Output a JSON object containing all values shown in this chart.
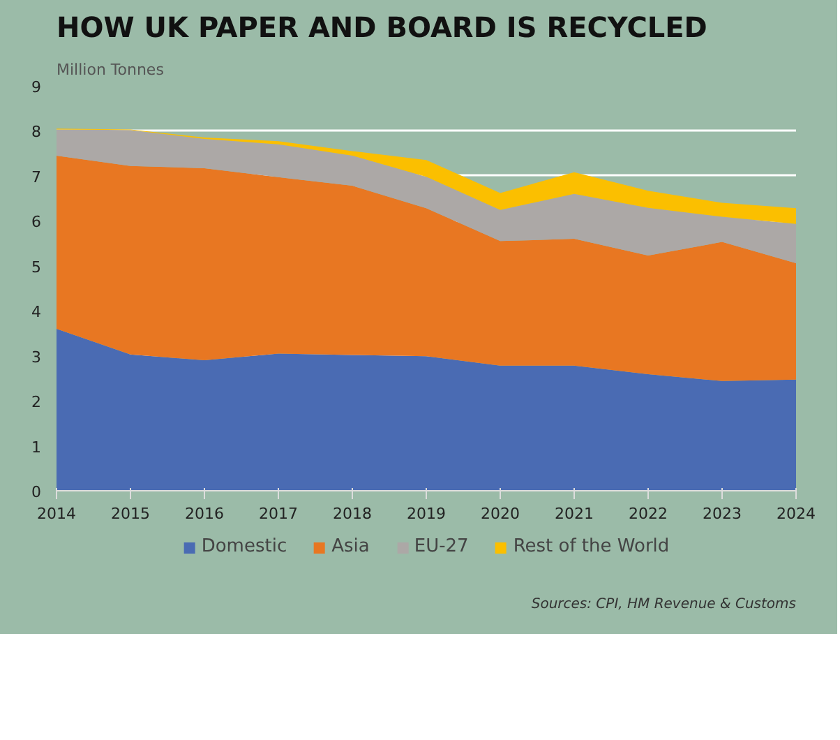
{
  "chart_data": {
    "type": "area",
    "stacked": true,
    "title": "HOW UK PAPER AND BOARD IS RECYCLED",
    "ylabel": "Million Tonnes",
    "x": [
      2014,
      2015,
      2016,
      2017,
      2018,
      2019,
      2020,
      2021,
      2022,
      2023,
      2024
    ],
    "series": [
      {
        "name": "Domestic",
        "color": "#4a6bb3",
        "values": [
          3.6,
          3.03,
          2.9,
          3.05,
          3.02,
          2.99,
          2.78,
          2.78,
          2.59,
          2.44,
          2.47
        ]
      },
      {
        "name": "Asia",
        "color": "#e87722",
        "values": [
          3.85,
          4.19,
          4.27,
          3.92,
          3.76,
          3.29,
          2.77,
          2.82,
          2.64,
          3.09,
          2.59
        ]
      },
      {
        "name": "EU-27",
        "color": "#aca8a6",
        "values": [
          0.58,
          0.8,
          0.65,
          0.73,
          0.67,
          0.7,
          0.69,
          1.0,
          1.06,
          0.56,
          0.87
        ]
      },
      {
        "name": "Rest of the World",
        "color": "#fbbf00",
        "values": [
          0.02,
          0.01,
          0.03,
          0.07,
          0.1,
          0.37,
          0.38,
          0.48,
          0.38,
          0.31,
          0.35
        ]
      }
    ],
    "xlim": [
      2014,
      2024
    ],
    "xticks": [
      2014,
      2015,
      2016,
      2017,
      2018,
      2019,
      2020,
      2021,
      2022,
      2023,
      2024
    ],
    "ylim": [
      0,
      9
    ],
    "yticks": [
      0,
      1,
      2,
      3,
      4,
      5,
      6,
      7,
      8,
      9
    ],
    "grid": "y",
    "legend": "bottom",
    "annotations": [
      "Sources: CPI, HM Revenue & Customs"
    ]
  }
}
